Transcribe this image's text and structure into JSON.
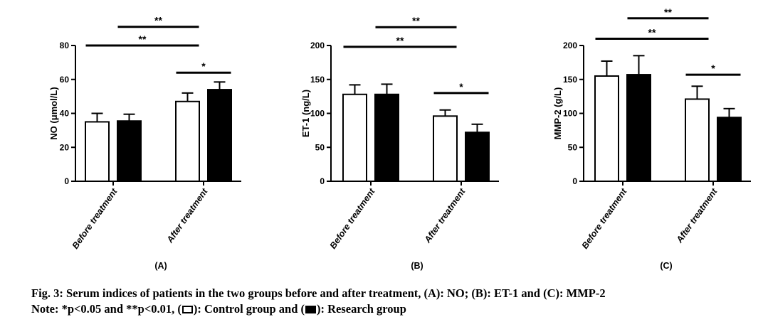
{
  "chart_data": [
    {
      "type": "bar",
      "panel_label": "(A)",
      "ylabel": "NO (μmol/L)",
      "ylim": [
        0,
        80
      ],
      "yticks": [
        0,
        20,
        40,
        60,
        80
      ],
      "categories": [
        "Before treatment",
        "After treatment"
      ],
      "series": [
        {
          "name": "Control group",
          "values": [
            35,
            47
          ],
          "errors": [
            5,
            5
          ],
          "fill": "#ffffff"
        },
        {
          "name": "Research group",
          "values": [
            35.5,
            54
          ],
          "errors": [
            4,
            4.5
          ],
          "fill": "#000000"
        }
      ],
      "significance": [
        {
          "label": "**",
          "level": 80,
          "span": "control-before to control-after"
        },
        {
          "label": "**",
          "level": 91,
          "span": "research-before to control-after"
        },
        {
          "label": "*",
          "level": 64,
          "span": "control-after to research-after"
        }
      ],
      "grid": false,
      "legend": "none"
    },
    {
      "type": "bar",
      "panel_label": "(B)",
      "ylabel": "ET-1 (ng/L)",
      "ylim": [
        0,
        200
      ],
      "yticks": [
        0,
        50,
        100,
        150,
        200
      ],
      "categories": [
        "Before treatment",
        "After treatment"
      ],
      "series": [
        {
          "name": "Control group",
          "values": [
            128,
            96
          ],
          "errors": [
            14,
            9
          ],
          "fill": "#ffffff"
        },
        {
          "name": "Research group",
          "values": [
            128,
            72
          ],
          "errors": [
            15,
            12
          ],
          "fill": "#000000"
        }
      ],
      "significance": [
        {
          "label": "**",
          "level": 198,
          "span": "control-before to control-after"
        },
        {
          "label": "**",
          "level": 227,
          "span": "research-before to control-after"
        },
        {
          "label": "*",
          "level": 130,
          "span": "control-after to research-after"
        }
      ],
      "grid": false,
      "legend": "none"
    },
    {
      "type": "bar",
      "panel_label": "(C)",
      "ylabel": "MMP-2 (g/L)",
      "ylim": [
        0,
        200
      ],
      "yticks": [
        0,
        50,
        100,
        150,
        200
      ],
      "categories": [
        "Before treatment",
        "After treatment"
      ],
      "series": [
        {
          "name": "Control group",
          "values": [
            155,
            121
          ],
          "errors": [
            22,
            19
          ],
          "fill": "#ffffff"
        },
        {
          "name": "Research group",
          "values": [
            157,
            94
          ],
          "errors": [
            28,
            13
          ],
          "fill": "#000000"
        }
      ],
      "significance": [
        {
          "label": "**",
          "level": 210,
          "span": "control-before to control-after"
        },
        {
          "label": "**",
          "level": 240,
          "span": "research-before to control-after"
        },
        {
          "label": "*",
          "level": 157,
          "span": "control-after to research-after"
        }
      ],
      "grid": false,
      "legend": "none"
    }
  ],
  "caption": {
    "title": "Fig. 3: Serum indices of patients in the two groups before and after treatment, (A): NO; (B): ET-1 and (C): MMP-2",
    "note_prefix": "Note: *p<0.05 and **p<0.01, (",
    "note_control": "): Control group and (",
    "note_research": "): Research group"
  }
}
